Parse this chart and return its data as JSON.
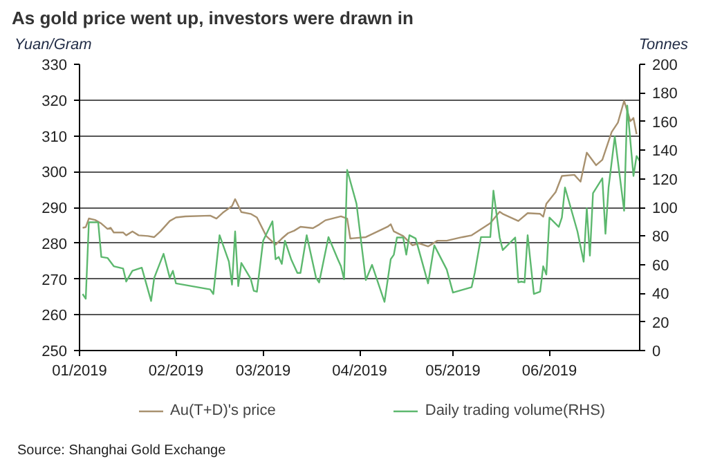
{
  "chart_data": {
    "type": "line",
    "title": "As gold price went up, investors were drawn in",
    "ylabel": "Yuan/Gram",
    "y2label": "Tonnes",
    "annotations": [
      "Source: Shanghai Gold Exchange"
    ],
    "xlim": [
      "2019-01-01",
      "2019-06-30"
    ],
    "xticks": [
      {
        "value": "2019-01-01",
        "label": "01/2019"
      },
      {
        "value": "2019-02-01",
        "label": "02/2019"
      },
      {
        "value": "2019-03-01",
        "label": "03/2019"
      },
      {
        "value": "2019-04-01",
        "label": "04/2019"
      },
      {
        "value": "2019-05-01",
        "label": "05/2019"
      },
      {
        "value": "2019-06-01",
        "label": "06/2019"
      }
    ],
    "ylim": [
      250,
      330
    ],
    "yticks": [
      250,
      260,
      270,
      280,
      290,
      300,
      310,
      320,
      330
    ],
    "y2lim": [
      0,
      200
    ],
    "y2ticks": [
      0,
      20,
      40,
      60,
      80,
      100,
      120,
      140,
      160,
      180,
      200
    ],
    "grid": "y",
    "legend": "bottom",
    "line_style": "solid",
    "series": [
      {
        "name": "Au(T+D)'s price",
        "color": "#a8916f",
        "x": [
          "2019-01-02",
          "2019-01-03",
          "2019-01-04",
          "2019-01-06",
          "2019-01-08",
          "2019-01-10",
          "2019-01-11",
          "2019-01-12",
          "2019-01-15",
          "2019-01-16",
          "2019-01-18",
          "2019-01-20",
          "2019-01-23",
          "2019-01-25",
          "2019-01-27",
          "2019-01-30",
          "2019-02-01",
          "2019-02-04",
          "2019-02-12",
          "2019-02-14",
          "2019-02-16",
          "2019-02-19",
          "2019-02-20",
          "2019-02-22",
          "2019-02-25",
          "2019-02-27",
          "2019-03-02",
          "2019-03-05",
          "2019-03-07",
          "2019-03-09",
          "2019-03-11",
          "2019-03-13",
          "2019-03-17",
          "2019-03-19",
          "2019-03-21",
          "2019-03-26",
          "2019-03-28",
          "2019-03-29",
          "2019-04-03",
          "2019-04-10",
          "2019-04-11",
          "2019-04-12",
          "2019-04-15",
          "2019-04-18",
          "2019-04-20",
          "2019-04-23",
          "2019-04-26",
          "2019-04-29",
          "2019-05-04",
          "2019-05-07",
          "2019-05-10",
          "2019-05-13",
          "2019-05-16",
          "2019-05-17",
          "2019-05-22",
          "2019-05-25",
          "2019-05-29",
          "2019-05-30",
          "2019-05-31",
          "2019-06-03",
          "2019-06-05",
          "2019-06-09",
          "2019-06-11",
          "2019-06-13",
          "2019-06-16",
          "2019-06-18",
          "2019-06-21",
          "2019-06-23",
          "2019-06-25",
          "2019-06-27",
          "2019-06-28",
          "2019-06-29"
        ],
        "values": [
          284.3,
          284.5,
          286.9,
          286.5,
          285.5,
          284,
          284.3,
          283,
          283,
          282.2,
          283.3,
          282.2,
          282,
          281.7,
          283.3,
          286.2,
          287.2,
          287.5,
          287.7,
          286.9,
          288.5,
          290.4,
          292.3,
          288.7,
          288.2,
          287.2,
          282,
          279.6,
          281.3,
          282.8,
          283.5,
          284.6,
          284.2,
          285.2,
          286.4,
          287.5,
          286.9,
          281.3,
          281.7,
          284.6,
          285.3,
          283.3,
          282,
          279.4,
          280,
          279.1,
          280.7,
          280.7,
          281.7,
          282.2,
          283.9,
          285.6,
          288.8,
          288.2,
          286.2,
          288.4,
          288.2,
          287.4,
          291,
          294.3,
          298.8,
          299.1,
          297.2,
          305.3,
          301.8,
          303.3,
          311.1,
          313.7,
          319.8,
          314.1,
          315,
          310.5
        ]
      },
      {
        "name": "Daily trading volume(RHS)",
        "color": "#5cb86e",
        "axis": "y2",
        "x": [
          "2019-01-02",
          "2019-01-03",
          "2019-01-04",
          "2019-01-07",
          "2019-01-08",
          "2019-01-10",
          "2019-01-12",
          "2019-01-15",
          "2019-01-16",
          "2019-01-18",
          "2019-01-21",
          "2019-01-24",
          "2019-01-25",
          "2019-01-28",
          "2019-01-30",
          "2019-01-31",
          "2019-02-01",
          "2019-02-12",
          "2019-02-13",
          "2019-02-15",
          "2019-02-18",
          "2019-02-19",
          "2019-02-20",
          "2019-02-21",
          "2019-02-22",
          "2019-02-25",
          "2019-02-26",
          "2019-02-27",
          "2019-03-01",
          "2019-03-04",
          "2019-03-05",
          "2019-03-06",
          "2019-03-07",
          "2019-03-08",
          "2019-03-10",
          "2019-03-12",
          "2019-03-13",
          "2019-03-15",
          "2019-03-18",
          "2019-03-19",
          "2019-03-22",
          "2019-03-25",
          "2019-03-26",
          "2019-03-27",
          "2019-03-28",
          "2019-03-31",
          "2019-04-03",
          "2019-04-05",
          "2019-04-09",
          "2019-04-11",
          "2019-04-12",
          "2019-04-13",
          "2019-04-15",
          "2019-04-16",
          "2019-04-17",
          "2019-04-19",
          "2019-04-23",
          "2019-04-25",
          "2019-04-29",
          "2019-05-01",
          "2019-05-07",
          "2019-05-08",
          "2019-05-10",
          "2019-05-13",
          "2019-05-14",
          "2019-05-16",
          "2019-05-17",
          "2019-05-21",
          "2019-05-22",
          "2019-05-23",
          "2019-05-24",
          "2019-05-25",
          "2019-05-27",
          "2019-05-29",
          "2019-05-30",
          "2019-05-31",
          "2019-06-01",
          "2019-06-04",
          "2019-06-05",
          "2019-06-06",
          "2019-06-10",
          "2019-06-12",
          "2019-06-13",
          "2019-06-14",
          "2019-06-15",
          "2019-06-18",
          "2019-06-19",
          "2019-06-20",
          "2019-06-22",
          "2019-06-25",
          "2019-06-26",
          "2019-06-28",
          "2019-06-29",
          "2019-06-30"
        ],
        "values": [
          39.5,
          36.2,
          89.6,
          89.6,
          65.4,
          64.7,
          58.9,
          57.3,
          48.2,
          55.7,
          57.9,
          34.6,
          50.8,
          67.6,
          50.8,
          55.7,
          46.9,
          42.7,
          39.5,
          80.6,
          62.1,
          46,
          83.2,
          45,
          61.2,
          50.2,
          41.7,
          41.1,
          76.7,
          90.3,
          63.8,
          65.4,
          60.5,
          76.7,
          63.8,
          54.2,
          54.2,
          80.6,
          50.8,
          47.6,
          79.3,
          63.8,
          58.9,
          49.8,
          126.2,
          102.6,
          49.2,
          59.9,
          34,
          63.8,
          67,
          79,
          79,
          67,
          80.6,
          78.3,
          46.9,
          73.5,
          56.6,
          40.5,
          44.3,
          54.2,
          79.3,
          79.3,
          111.7,
          79,
          70.2,
          79,
          47.6,
          48.2,
          47.6,
          80.6,
          39.5,
          41.1,
          58.9,
          53.1,
          92.9,
          86.4,
          92.9,
          113.9,
          83.2,
          62.1,
          99.4,
          66.3,
          110,
          120.4,
          81.6,
          113.9,
          149.5,
          97.7,
          171.2,
          122,
          135.9,
          132.4
        ]
      }
    ]
  }
}
